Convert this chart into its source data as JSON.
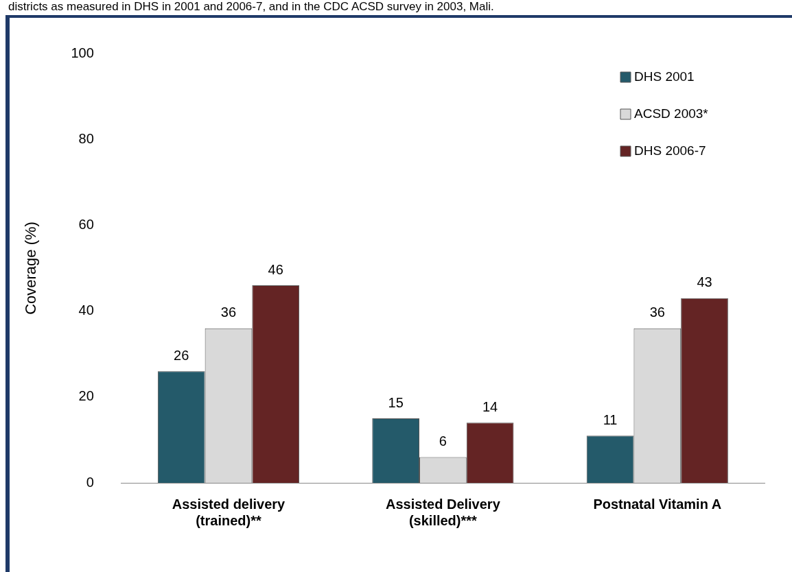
{
  "chart_data": {
    "type": "bar",
    "title": "districts as measured in DHS in 2001 and 2006-7, and in the CDC ACSD survey in 2003, Mali.",
    "ylabel": "Coverage (%)",
    "categories": [
      "Assisted delivery\n(trained)**",
      "Assisted Delivery\n(skilled)***",
      "Postnatal Vitamin A"
    ],
    "series": [
      {
        "name": "DHS 2001",
        "color": "#245a6a",
        "values": [
          26,
          15,
          11
        ]
      },
      {
        "name": "ACSD 2003*",
        "color": "#d9d9d9",
        "values": [
          36,
          6,
          36
        ]
      },
      {
        "name": "DHS 2006-7",
        "color": "#642424",
        "values": [
          46,
          14,
          43
        ]
      }
    ],
    "ylim": [
      0,
      100
    ],
    "yticks": [
      0,
      20,
      40,
      60,
      80,
      100
    ],
    "grid": false,
    "legend": "top right",
    "data_labels": true
  }
}
